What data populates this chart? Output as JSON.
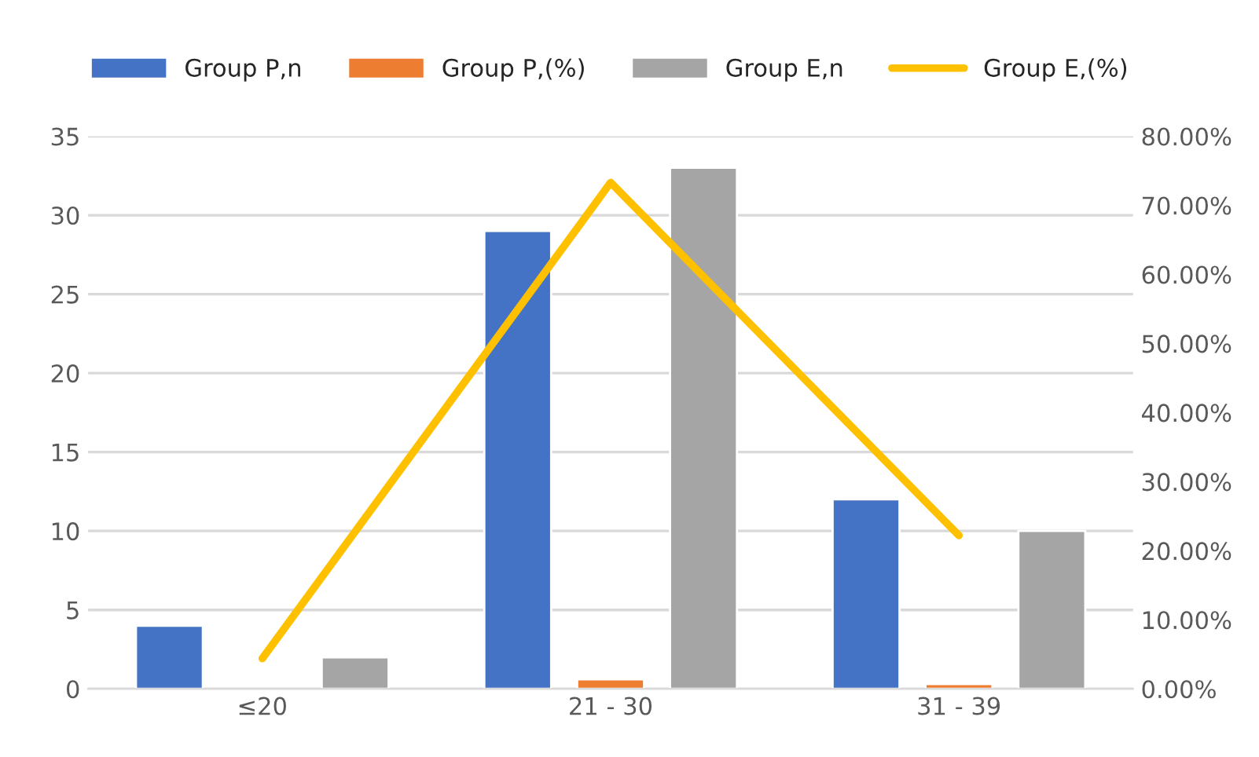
{
  "chart_data": {
    "type": "bar",
    "categories": [
      "≤20",
      "21 - 30",
      "31 - 39"
    ],
    "series": [
      {
        "name": "Group P,n",
        "color": "#4472c4",
        "values": [
          4,
          29,
          12
        ]
      },
      {
        "name": "Group P,(%)",
        "color": "#ed7d31",
        "values": [
          null,
          0.6,
          0.3
        ]
      },
      {
        "name": "Group E,n",
        "color": "#a5a5a5",
        "values": [
          2,
          33,
          10
        ]
      },
      {
        "name": "Group E,(%)",
        "type": "line",
        "axis": "y2",
        "color": "#ffc000",
        "values": [
          4.4,
          73.3,
          22.2
        ]
      }
    ],
    "ylim": [
      0,
      35
    ],
    "yticks": [
      0,
      5,
      10,
      15,
      20,
      25,
      30,
      35
    ],
    "y2lim": [
      0,
      80
    ],
    "y2ticks": [
      {
        "value": 0,
        "label": "0.00%"
      },
      {
        "value": 10,
        "label": "10.00%"
      },
      {
        "value": 20,
        "label": "20.00%"
      },
      {
        "value": 30,
        "label": "30.00%"
      },
      {
        "value": 40,
        "label": "40.00%"
      },
      {
        "value": 50,
        "label": "50.00%"
      },
      {
        "value": 60,
        "label": "60.00%"
      },
      {
        "value": 70,
        "label": "70.00%"
      },
      {
        "value": 80,
        "label": "80.00%"
      }
    ],
    "grid": "y",
    "legend": "top",
    "marker": "none"
  }
}
